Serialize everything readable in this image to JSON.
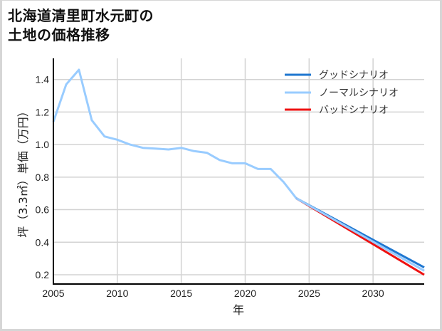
{
  "title_line1": "北海道清里町水元町の",
  "title_line2": "土地の価格推移",
  "colors": {
    "good": "#1f77d0",
    "normal": "#99ccff",
    "bad": "#ee1111",
    "grid": "#d3d3d3",
    "spine": "#000000"
  },
  "chart_data": {
    "type": "line",
    "title": "北海道清里町水元町の土地の価格推移",
    "xlabel": "年",
    "ylabel": "坪（3.3㎡）単価（万円）",
    "xlim": [
      2005,
      2034
    ],
    "ylim": [
      0.143,
      1.53
    ],
    "grid": true,
    "legend_position": "upper right",
    "x_ticks": [
      2005,
      2010,
      2015,
      2020,
      2025,
      2030
    ],
    "x_tick_labels": [
      "2005",
      "2010",
      "2015",
      "2020",
      "2025",
      "2030"
    ],
    "y_ticks": [
      0.2,
      0.4,
      0.6,
      0.8,
      1.0,
      1.2,
      1.4
    ],
    "y_tick_labels": [
      "0.2",
      "0.4",
      "0.6",
      "0.8",
      "1.0",
      "1.2",
      "1.4"
    ],
    "legend": [
      "グッドシナリオ",
      "ノーマルシナリオ",
      "バッドシナリオ"
    ],
    "series": [
      {
        "name": "グッドシナリオ",
        "color": "#1f77d0",
        "x": [
          2024,
          2034
        ],
        "values": [
          0.67,
          0.245
        ]
      },
      {
        "name": "ノーマルシナリオ",
        "color": "#99ccff",
        "x": [
          2005,
          2006,
          2007,
          2008,
          2009,
          2010,
          2011,
          2012,
          2013,
          2014,
          2015,
          2016,
          2017,
          2018,
          2019,
          2020,
          2021,
          2022,
          2023,
          2024,
          2034
        ],
        "values": [
          1.14,
          1.37,
          1.46,
          1.15,
          1.05,
          1.03,
          1.0,
          0.98,
          0.975,
          0.97,
          0.98,
          0.96,
          0.95,
          0.905,
          0.885,
          0.885,
          0.85,
          0.85,
          0.77,
          0.67,
          0.225
        ]
      },
      {
        "name": "バッドシナリオ",
        "color": "#ee1111",
        "x": [
          2024,
          2034
        ],
        "values": [
          0.67,
          0.2
        ]
      }
    ]
  }
}
